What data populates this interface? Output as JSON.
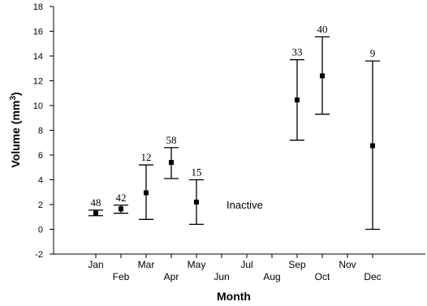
{
  "chart_data": {
    "type": "scatter",
    "ylabel": "Volume (mm",
    "ylabel_sup": "3",
    "ylabel_close": ")",
    "xlabel": "Month",
    "ylim": [
      -2,
      18
    ],
    "y_ticks": [
      -2,
      0,
      2,
      4,
      6,
      8,
      10,
      12,
      14,
      16,
      18
    ],
    "categories": [
      "Jan",
      "Feb",
      "Mar",
      "Apr",
      "May",
      "Jun",
      "Jul",
      "Aug",
      "Sep",
      "Oct",
      "Nov",
      "Dec"
    ],
    "grid": false,
    "annotation": "Inactive",
    "points": [
      {
        "month": "Jan",
        "mean": 1.3,
        "low": 1.1,
        "high": 1.55,
        "n": "48"
      },
      {
        "month": "Feb",
        "mean": 1.65,
        "low": 1.3,
        "high": 1.95,
        "n": "42"
      },
      {
        "month": "Mar",
        "mean": 2.95,
        "low": 0.8,
        "high": 5.2,
        "n": "12"
      },
      {
        "month": "Apr",
        "mean": 5.4,
        "low": 4.1,
        "high": 6.6,
        "n": "58"
      },
      {
        "month": "May",
        "mean": 2.2,
        "low": 0.4,
        "high": 4.0,
        "n": "15"
      },
      {
        "month": "Sep",
        "mean": 10.45,
        "low": 7.2,
        "high": 13.7,
        "n": "33"
      },
      {
        "month": "Oct",
        "mean": 12.4,
        "low": 9.3,
        "high": 15.55,
        "n": "40"
      },
      {
        "month": "Dec",
        "mean": 6.75,
        "low": 0.0,
        "high": 13.6,
        "n": "9"
      }
    ]
  }
}
